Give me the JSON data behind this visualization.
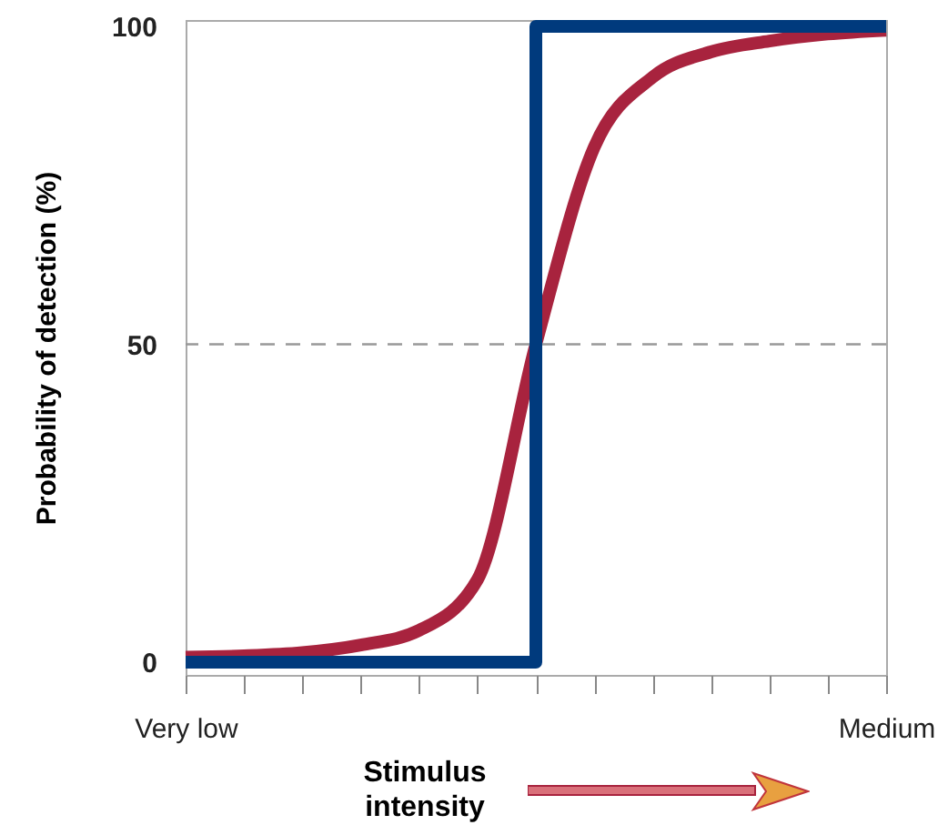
{
  "chart_data": {
    "type": "line",
    "xlabel": "Stimulus intensity",
    "ylabel": "Probability of detection (%)",
    "categories": [
      "Very low",
      null,
      null,
      null,
      null,
      null,
      null,
      null,
      null,
      null,
      null,
      null,
      "Medium"
    ],
    "ylim": [
      -2,
      101
    ],
    "yticks": [
      0,
      50,
      100
    ],
    "grid": false,
    "marker": "none",
    "line_style": "solid",
    "ref_lines": [
      {
        "axis": "y",
        "value": 50,
        "color": "#999999",
        "line_style": "dashed"
      }
    ],
    "series": [
      {
        "color": "#a8233e",
        "values": [
          0.8,
          1,
          1.5,
          2.7,
          5,
          13,
          50,
          81,
          92,
          96,
          97.7,
          98.8,
          99.4
        ]
      },
      {
        "type": "step",
        "color": "#003a7d",
        "values": [
          0,
          0,
          0,
          0,
          0,
          0,
          100,
          100,
          100,
          100,
          100,
          100,
          100
        ]
      }
    ]
  }
}
